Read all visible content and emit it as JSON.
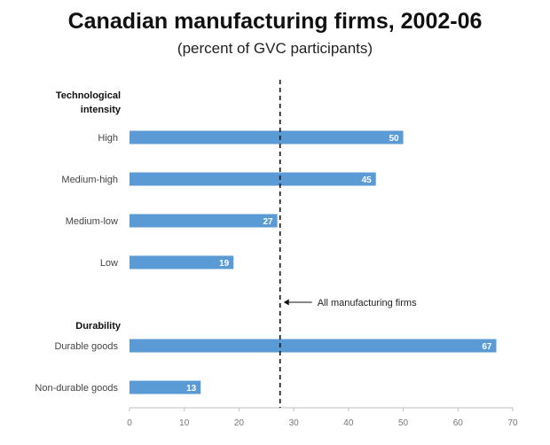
{
  "chart_data": {
    "type": "bar",
    "orientation": "horizontal",
    "title": "Canadian manufacturing firms, 2002-06",
    "subtitle": "(percent of GVC participants)",
    "xlim": [
      0,
      70
    ],
    "xticks": [
      0,
      10,
      20,
      30,
      40,
      50,
      60,
      70
    ],
    "groups": [
      {
        "label": "Technological intensity",
        "label_lines": [
          "Technological",
          "intensity"
        ],
        "items": [
          {
            "category": "High",
            "value": 50
          },
          {
            "category": "Medium-high",
            "value": 45
          },
          {
            "category": "Medium-low",
            "value": 27
          },
          {
            "category": "Low",
            "value": 19
          }
        ]
      },
      {
        "label": "Durability",
        "label_lines": [
          "Durability"
        ],
        "items": [
          {
            "category": "Durable goods",
            "value": 67
          },
          {
            "category": "Non-durable goods",
            "value": 13
          }
        ]
      }
    ],
    "reference_line": {
      "value": 27.5,
      "style": "dashed",
      "label": "All manufacturing firms"
    },
    "bar_color": "#5b9bd5",
    "grid": false,
    "legend": "none"
  }
}
